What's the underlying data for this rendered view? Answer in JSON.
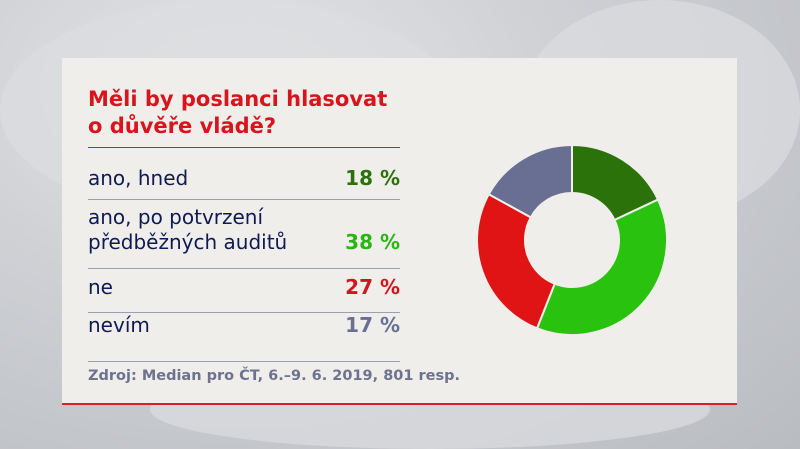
{
  "chart_data": {
    "type": "pie",
    "donut": true,
    "title": "Měli by poslanci hlasovat o důvěře vládě?",
    "categories": [
      "ano, hned",
      "ano, po potvrzení předběžných auditů",
      "ne",
      "nevím"
    ],
    "values": [
      18,
      38,
      27,
      17
    ],
    "value_labels": [
      "18 %",
      "38 %",
      "27 %",
      "17 %"
    ],
    "colors": [
      "#2b720b",
      "#29c30f",
      "#e01414",
      "#686f93"
    ],
    "source": "Zdroj: Median pro ČT, 6.–9. 6. 2019, 801 resp."
  },
  "title_lines": [
    "Měli by poslanci hlasovat",
    "o důvěře vládě?"
  ],
  "rows": [
    {
      "label_lines": [
        "ano, hned"
      ],
      "value": "18 %",
      "color": "#2b720b"
    },
    {
      "label_lines": [
        "ano, po potvrzení",
        "předběžných auditů"
      ],
      "value": "38 %",
      "color": "#29b512"
    },
    {
      "label_lines": [
        "ne"
      ],
      "value": "27 %",
      "color": "#d4141c"
    },
    {
      "label_lines": [
        "nevím"
      ],
      "value": "17 %",
      "color": "#686f93"
    }
  ]
}
